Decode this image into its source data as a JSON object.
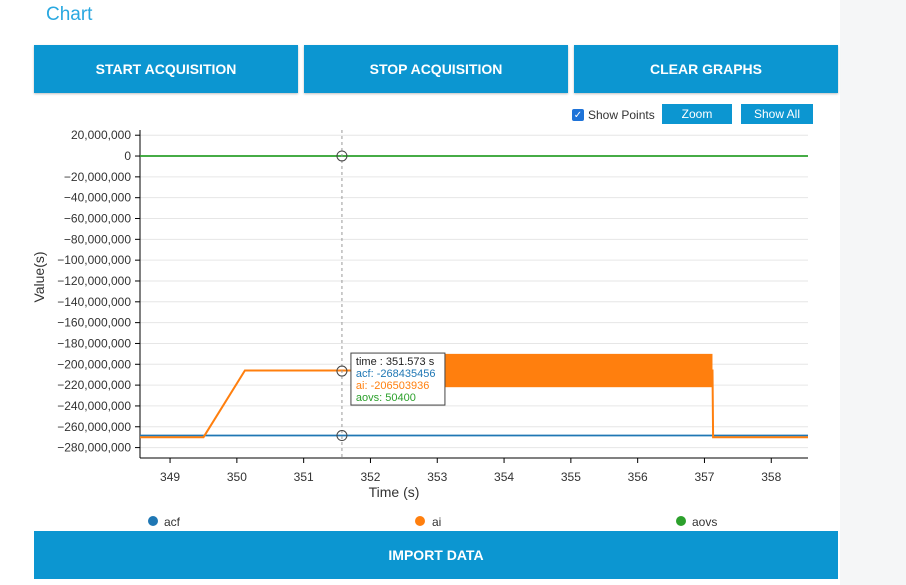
{
  "header": {
    "title": "Chart"
  },
  "toolbar": {
    "start_label": "START ACQUISITION",
    "stop_label": "STOP ACQUISITION",
    "clear_label": "CLEAR GRAPHS"
  },
  "chart_controls": {
    "show_points_label": "Show Points",
    "show_points_checked": true,
    "zoom_label": "Zoom",
    "show_all_label": "Show All"
  },
  "chart_data": {
    "type": "line",
    "xlabel": "Time (s)",
    "ylabel": "Value(s)",
    "xlim": [
      348.55,
      358.55
    ],
    "ylim": [
      -290000000,
      25000000
    ],
    "xticks": [
      349,
      350,
      351,
      352,
      353,
      354,
      355,
      356,
      357,
      358
    ],
    "yticks": [
      20000000,
      0,
      -20000000,
      -40000000,
      -60000000,
      -80000000,
      -100000000,
      -120000000,
      -140000000,
      -160000000,
      -180000000,
      -200000000,
      -220000000,
      -240000000,
      -260000000,
      -280000000
    ],
    "ytick_labels": [
      "20,000,000",
      "0",
      "−20,000,000",
      "−40,000,000",
      "−60,000,000",
      "−80,000,000",
      "−100,000,000",
      "−120,000,000",
      "−140,000,000",
      "−160,000,000",
      "−180,000,000",
      "−200,000,000",
      "−220,000,000",
      "−240,000,000",
      "−260,000,000",
      "−280,000,000"
    ],
    "series": [
      {
        "name": "acf",
        "color": "#1f77b4",
        "x": [
          348.55,
          358.55
        ],
        "y": [
          -268435456,
          -268435456
        ]
      },
      {
        "name": "ai",
        "color": "#ff7f0e",
        "x": [
          348.55,
          349.5,
          350.12,
          351.75,
          351.76,
          357.12,
          357.13,
          358.55
        ],
        "y": [
          -270000000,
          -270000000,
          -206000000,
          -206000000,
          -206000000,
          -206000000,
          -270000000,
          -270000000
        ],
        "noisy_band": {
          "x_start": 351.75,
          "x_end": 357.12,
          "y_top": -190000000,
          "y_bottom": -222000000
        }
      },
      {
        "name": "aovs",
        "color": "#2ca02c",
        "x": [
          348.55,
          358.55
        ],
        "y": [
          50400,
          50400
        ]
      }
    ],
    "cursor": {
      "x": 351.573,
      "time_label": "time : 351.573 s",
      "acf_label": "acf: -268435456",
      "ai_label": "ai: -206503936",
      "aovs_label": "aovs: 50400",
      "acf_value": -268435456,
      "ai_value": -206503936,
      "aovs_value": 50400
    },
    "legend": [
      "acf",
      "ai",
      "aovs"
    ],
    "grid": true
  },
  "footer": {
    "import_label": "IMPORT DATA"
  }
}
